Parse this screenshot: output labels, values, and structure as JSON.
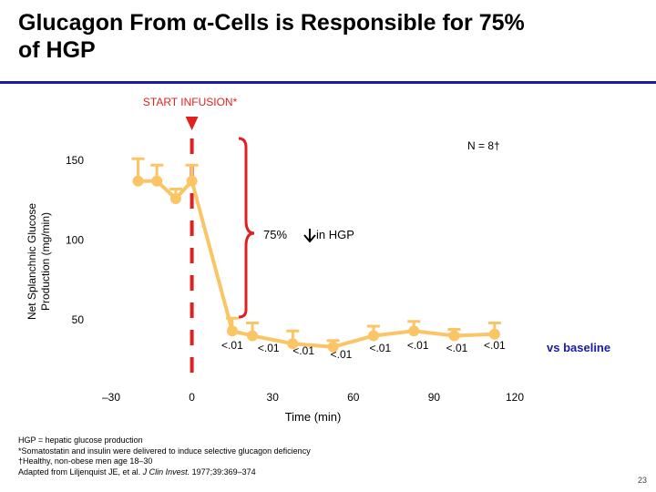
{
  "slide": {
    "title_line1": "Glucagon From α-Cells is Responsible for 75%",
    "title_line2": "of HGP",
    "page_number": "23",
    "footnotes": [
      "HGP = hepatic glucose production",
      "*Somatostatin and insulin were delivered to induce selective glucagon deficiency",
      "†Healthy, non-obese men age 18–30",
      "Adapted from Liljenquist JE, et al. "
    ],
    "citation_journal": "J Clin Invest.",
    "citation_rest": " 1977;39:369–374"
  },
  "colors": {
    "accent": "#1a1aa6",
    "series": "#fbc565",
    "marker": "#e0211f",
    "dashed_line": "#e0211f"
  },
  "chart_data": {
    "type": "line",
    "title": "",
    "xlabel": "Time (min)",
    "ylabel_line1": "Net Splanchnic Glucose",
    "ylabel_line2": "Production (mg/min)",
    "xlim": [
      -30,
      120
    ],
    "ylim": [
      40,
      155
    ],
    "x_ticks": [
      {
        "value": -30,
        "label": "–30"
      },
      {
        "value": 0,
        "label": "0"
      },
      {
        "value": 30,
        "label": "30"
      },
      {
        "value": 60,
        "label": "60"
      },
      {
        "value": 90,
        "label": "90"
      },
      {
        "value": 120,
        "label": "120"
      }
    ],
    "y_ticks": [
      {
        "value": 150,
        "label": "150"
      },
      {
        "value": 100,
        "label": "100"
      },
      {
        "value": 50,
        "label": "50"
      }
    ],
    "series": [
      {
        "name": "HGP",
        "points": [
          {
            "x": -20,
            "y": 137,
            "err": 14
          },
          {
            "x": -13,
            "y": 137,
            "err": 10
          },
          {
            "x": -6,
            "y": 126,
            "err": 6
          },
          {
            "x": 0,
            "y": 137,
            "err": 10
          },
          {
            "x": 15,
            "y": 43,
            "err": 8
          },
          {
            "x": 22.5,
            "y": 40,
            "err": 8
          },
          {
            "x": 37.5,
            "y": 35,
            "err": 8
          },
          {
            "x": 52.5,
            "y": 33,
            "err": 4
          },
          {
            "x": 67.5,
            "y": 40,
            "err": 6
          },
          {
            "x": 82.5,
            "y": 43,
            "err": 6
          },
          {
            "x": 97.5,
            "y": 40,
            "err": 4
          },
          {
            "x": 112.5,
            "y": 41,
            "err": 7
          }
        ]
      }
    ],
    "p_values": [
      {
        "x": 15,
        "label": "<.01",
        "dy": 0
      },
      {
        "x": 28.5,
        "label": "<.01",
        "dy": 3
      },
      {
        "x": 41.5,
        "label": "<.01",
        "dy": 6
      },
      {
        "x": 55.5,
        "label": "<.01",
        "dy": 10
      },
      {
        "x": 70,
        "label": "<.01",
        "dy": 3
      },
      {
        "x": 84,
        "label": "<.01",
        "dy": 0
      },
      {
        "x": 98.5,
        "label": "<.01",
        "dy": 3
      },
      {
        "x": 112.5,
        "label": "<.01",
        "dy": 0
      }
    ],
    "annotations": {
      "start_infusion": "START INFUSION*",
      "start_infusion_x": 0,
      "n_label": "N = 8†",
      "reduction_label": "75%",
      "reduction_suffix": " in HGP",
      "vs_baseline": "vs baseline"
    }
  }
}
